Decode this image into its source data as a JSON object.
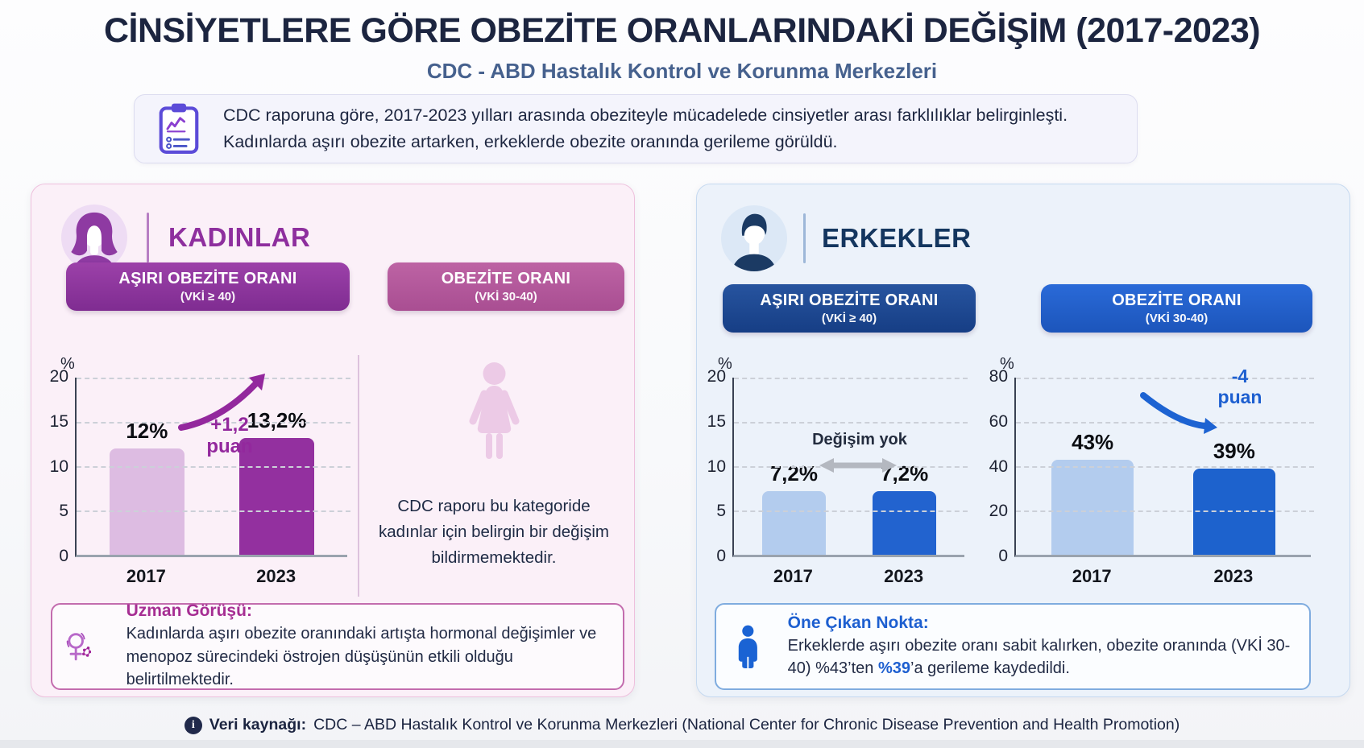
{
  "title": "CİNSİYETLERE GÖRE OBEZİTE ORANLARINDAKİ DEĞİŞİM (2017-2023)",
  "subtitle": "CDC - ABD Hastalık Kontrol ve Korunma Merkezleri",
  "intro": {
    "icon": "clipboard-chart-icon",
    "text_line1": "CDC raporuna göre, 2017-2023 yılları arasında obeziteyle mücadelede cinsiyetler arası farklılıklar belirginleşti.",
    "text_line2": "Kadınlarda aşırı obezite artarken, erkeklerde obezite oranında gerileme görüldü."
  },
  "women": {
    "label": "KADINLAR",
    "accent_color": "#8e2f9e",
    "pills": [
      {
        "title": "AŞIRI OBEZİTE ORANI",
        "range": "(VKİ ≥ 40)"
      },
      {
        "title": "OBEZİTE ORANI",
        "range": "(VKİ 30-40)"
      }
    ],
    "no_change_note": "CDC raporu bu kategoride kadınlar için belirgin bir değişim bildirmemektedir.",
    "expert": {
      "title": "Uzman Görüşü:",
      "body": "Kadınlarda aşırı obezite oranındaki artışta hormonal değişimler ve menopoz sürecindeki östrojen düşüşünün etkili olduğu belirtilmektedir."
    }
  },
  "men": {
    "label": "ERKEKLER",
    "accent_color": "#14365f",
    "pills": [
      {
        "title": "AŞIRI OBEZİTE ORANI",
        "range": "(VKİ ≥ 40)"
      },
      {
        "title": "OBEZİTE ORANI",
        "range": "(VKİ 30-40)"
      }
    ],
    "highlight": {
      "title": "Öne Çıkan Nokta:",
      "body_pre": "Erkeklerde aşırı obezite oranı sabit kalırken, obezite oranında (VKİ 30-40) %43’ten ",
      "body_em": "%39",
      "body_post": "’a gerileme kaydedildi."
    }
  },
  "footer": {
    "label": "Veri kaynağı:",
    "text": "CDC – ABD Hastalık Kontrol ve Korunma Merkezleri (National Center for Chronic Disease Prevention and Health Promotion)"
  },
  "colors": {
    "women_accent": "#8e2f9e",
    "women_bar_2017": "#ddbce2",
    "women_bar_2023": "#93309f",
    "men_accent": "#1d4f9e",
    "men_bar_2017": "#b3ccee",
    "men_bar_2023": "#2263cf",
    "annotation_blue": "#1d5fd0",
    "title_navy": "#1c2540"
  },
  "chart_data": [
    {
      "id": "women-severe-obesity",
      "type": "bar",
      "title": "Kadınlar — Aşırı Obezite Oranı (VKİ ≥ 40)",
      "categories": [
        "2017",
        "2023"
      ],
      "values": [
        12,
        13.2
      ],
      "value_labels": [
        "12%",
        "13,2%"
      ],
      "ylabel": "%",
      "ylim": [
        0,
        20
      ],
      "yticks": [
        20,
        15,
        10,
        5,
        0
      ],
      "grid": true,
      "bar_colors": [
        "#ddbce2",
        "#93309f"
      ],
      "annotation": "+1,2 puan"
    },
    {
      "id": "men-severe-obesity",
      "type": "bar",
      "title": "Erkekler — Aşırı Obezite Oranı (VKİ ≥ 40)",
      "categories": [
        "2017",
        "2023"
      ],
      "values": [
        7.2,
        7.2
      ],
      "value_labels": [
        "7,2%",
        "7,2%"
      ],
      "ylabel": "%",
      "ylim": [
        0,
        20
      ],
      "yticks": [
        20,
        15,
        10,
        5,
        0
      ],
      "grid": true,
      "bar_colors": [
        "#b3ccee",
        "#2263cf"
      ],
      "annotation": "Değişim yok"
    },
    {
      "id": "men-obesity",
      "type": "bar",
      "title": "Erkekler — Obezite Oranı (VKİ 30-40)",
      "categories": [
        "2017",
        "2023"
      ],
      "values": [
        43,
        39
      ],
      "value_labels": [
        "43%",
        "39%"
      ],
      "ylabel": "%",
      "ylim": [
        0,
        80
      ],
      "yticks": [
        80,
        60,
        40,
        20,
        0
      ],
      "grid": true,
      "bar_colors": [
        "#b3ccee",
        "#1d62cd"
      ],
      "annotation": "-4 puan"
    }
  ]
}
